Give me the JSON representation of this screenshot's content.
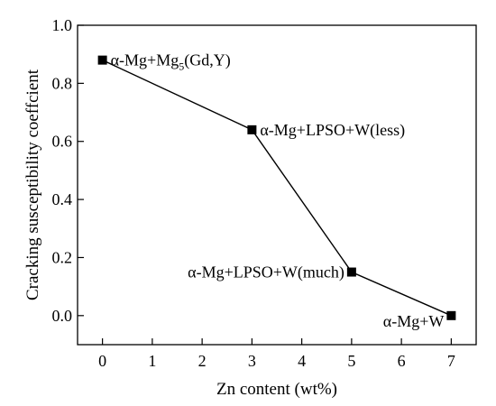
{
  "chart_data": {
    "type": "line",
    "xlabel": "Zn content (wt%)",
    "ylabel": "Cracking susceptibility coeffcient",
    "xlim": [
      -0.5,
      7.5
    ],
    "ylim": [
      -0.1,
      1.0
    ],
    "xticks": [
      "0",
      "1",
      "2",
      "3",
      "4",
      "5",
      "6",
      "7"
    ],
    "yticks": [
      "0.0",
      "0.2",
      "0.4",
      "0.6",
      "0.8",
      "1.0"
    ],
    "grid": false,
    "marker": "square",
    "color": "#000000",
    "points": [
      {
        "x": 0,
        "y": 0.88,
        "label": {
          "main": "α-Mg+Mg",
          "sub": "5",
          "rest": "(Gd,Y)"
        }
      },
      {
        "x": 3,
        "y": 0.64,
        "label": {
          "main": "α-Mg+LPSO+W(less)",
          "sub": "",
          "rest": ""
        }
      },
      {
        "x": 5,
        "y": 0.15,
        "label": {
          "main": "α-Mg+LPSO+W(much)",
          "sub": "",
          "rest": ""
        }
      },
      {
        "x": 7,
        "y": 0.0,
        "label": {
          "main": "α-Mg+W",
          "sub": "",
          "rest": ""
        }
      }
    ]
  }
}
